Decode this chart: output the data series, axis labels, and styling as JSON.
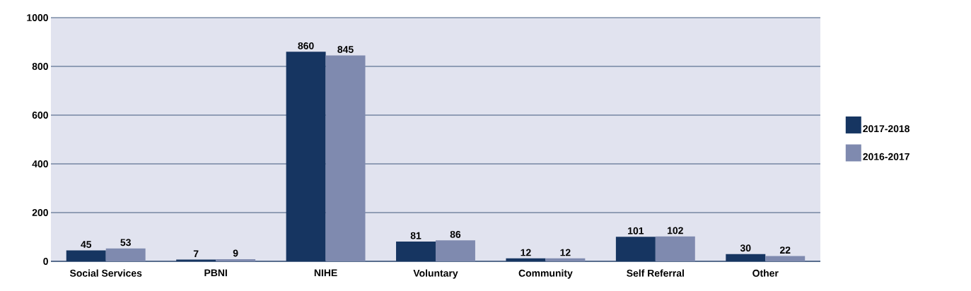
{
  "chart_data": {
    "type": "bar",
    "categories": [
      "Social Services",
      "PBNI",
      "NIHE",
      "Voluntary",
      "Community",
      "Self Referral",
      "Other"
    ],
    "series": [
      {
        "name": "2017-2018",
        "color": "#163561",
        "values": [
          45,
          7,
          860,
          81,
          12,
          101,
          30
        ]
      },
      {
        "name": "2016-2017",
        "color": "#7f8aaf",
        "values": [
          53,
          9,
          845,
          86,
          12,
          102,
          22
        ]
      }
    ],
    "ylim": [
      0,
      1000
    ],
    "yticks": [
      0,
      200,
      400,
      600,
      800,
      1000
    ],
    "grid": "y",
    "legend": "right",
    "data_labels": true
  }
}
